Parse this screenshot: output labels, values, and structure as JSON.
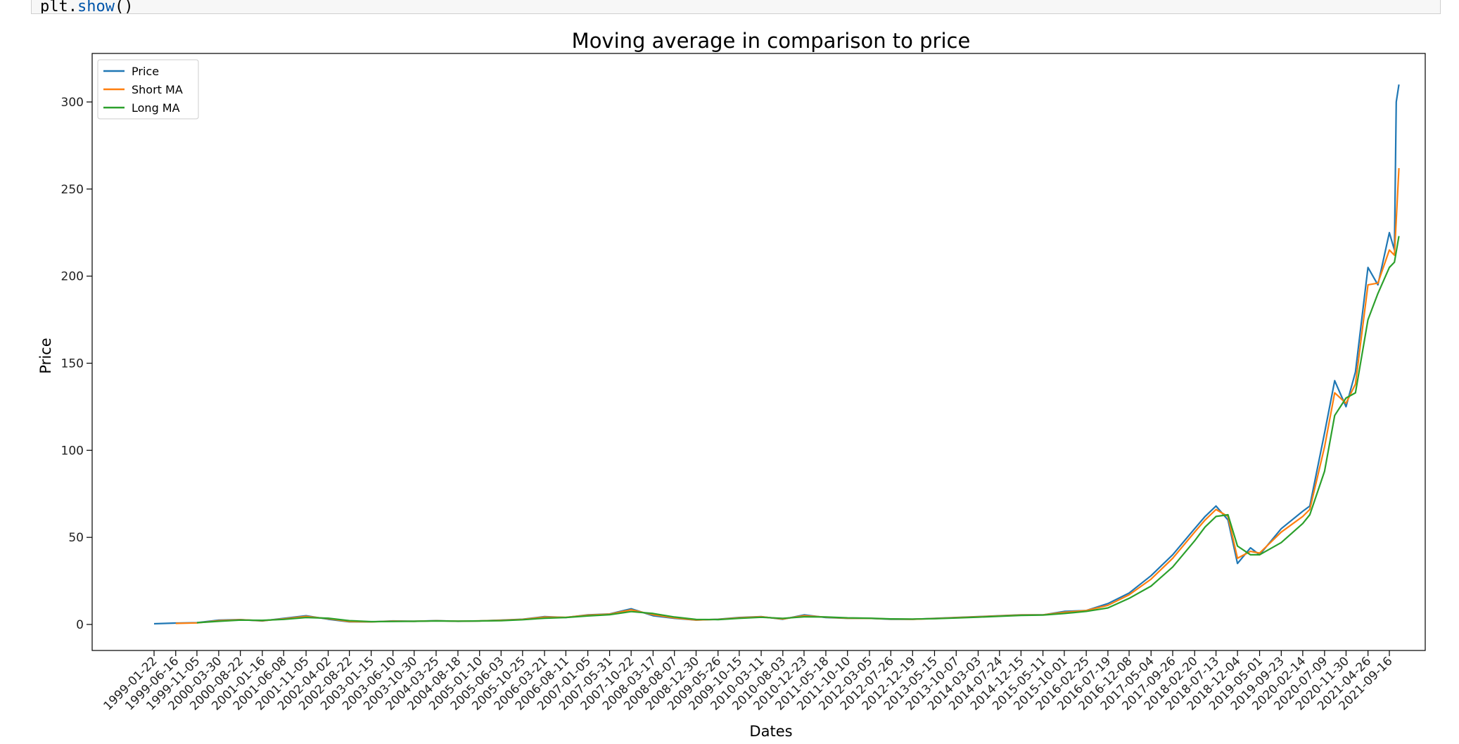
{
  "code_cell": {
    "visible_text_prefix": "plt.",
    "visible_text_fn": "show",
    "visible_text_suffix": "()"
  },
  "chart_data": {
    "type": "line",
    "title": "Moving average in comparison to price",
    "xlabel": "Dates",
    "ylabel": "Price",
    "ylim": [
      -15,
      326
    ],
    "yticks": [
      0,
      50,
      100,
      150,
      200,
      250,
      300
    ],
    "grid": false,
    "legend_position": "top-left",
    "x_tick_labels": [
      "1999-01-22",
      "1999-06-16",
      "1999-11-05",
      "2000-03-30",
      "2000-08-22",
      "2001-01-16",
      "2001-06-08",
      "2001-11-05",
      "2002-04-02",
      "2002-08-22",
      "2003-01-15",
      "2003-06-10",
      "2003-10-30",
      "2004-03-25",
      "2004-08-18",
      "2005-01-10",
      "2005-06-03",
      "2005-10-25",
      "2006-03-21",
      "2006-08-11",
      "2007-01-05",
      "2007-05-31",
      "2007-10-22",
      "2008-03-17",
      "2008-08-07",
      "2008-12-30",
      "2009-05-26",
      "2009-10-15",
      "2010-03-11",
      "2010-08-03",
      "2010-12-23",
      "2011-05-18",
      "2011-10-10",
      "2012-03-05",
      "2012-07-26",
      "2012-12-19",
      "2013-05-15",
      "2013-10-07",
      "2014-03-03",
      "2014-07-24",
      "2014-12-15",
      "2015-05-11",
      "2015-10-01",
      "2016-02-25",
      "2016-07-19",
      "2016-12-08",
      "2017-05-04",
      "2017-09-26",
      "2018-02-20",
      "2018-07-13",
      "2018-12-04",
      "2019-05-01",
      "2019-09-23",
      "2020-02-14",
      "2020-07-09",
      "2020-11-30",
      "2021-04-26",
      "2021-09-16"
    ],
    "series": [
      {
        "name": "Price",
        "color": "#1f77b4",
        "x": [
          "1999-01-22",
          "1999-06-16",
          "1999-11-05",
          "2000-03-30",
          "2000-08-22",
          "2001-01-16",
          "2001-06-08",
          "2001-11-05",
          "2002-04-02",
          "2002-08-22",
          "2003-01-15",
          "2003-06-10",
          "2003-10-30",
          "2004-03-25",
          "2004-08-18",
          "2005-01-10",
          "2005-06-03",
          "2005-10-25",
          "2006-03-21",
          "2006-08-11",
          "2007-01-05",
          "2007-05-31",
          "2007-10-22",
          "2008-03-17",
          "2008-08-07",
          "2008-12-30",
          "2009-05-26",
          "2009-10-15",
          "2010-03-11",
          "2010-08-03",
          "2010-12-23",
          "2011-05-18",
          "2011-10-10",
          "2012-03-05",
          "2012-07-26",
          "2012-12-19",
          "2013-05-15",
          "2013-10-07",
          "2014-03-03",
          "2014-07-24",
          "2014-12-15",
          "2015-05-11",
          "2015-10-01",
          "2016-02-25",
          "2016-07-19",
          "2016-12-08",
          "2017-05-04",
          "2017-09-26",
          "2018-02-20",
          "2018-05-01",
          "2018-07-13",
          "2018-10-01",
          "2018-12-04",
          "2019-03-01",
          "2019-05-01",
          "2019-09-23",
          "2020-02-14",
          "2020-04-01",
          "2020-07-09",
          "2020-09-15",
          "2020-11-30",
          "2021-02-01",
          "2021-04-26",
          "2021-07-01",
          "2021-09-16",
          "2021-10-20",
          "2021-11-01",
          "2021-11-19"
        ],
        "values": [
          0.4,
          0.8,
          1.0,
          2.5,
          2.8,
          2.0,
          3.5,
          5.0,
          3.0,
          1.5,
          1.5,
          2.0,
          1.8,
          2.2,
          1.8,
          2.0,
          2.5,
          3.0,
          4.5,
          4.0,
          5.5,
          6.0,
          9.0,
          5.0,
          3.5,
          2.5,
          3.0,
          4.0,
          4.5,
          3.0,
          5.5,
          4.0,
          3.5,
          3.5,
          3.0,
          3.0,
          3.5,
          4.0,
          4.5,
          5.0,
          5.5,
          5.5,
          7.5,
          8.0,
          12.0,
          18.0,
          28.0,
          40.0,
          55.0,
          62.0,
          68.0,
          60.0,
          35.0,
          44.0,
          40.0,
          55.0,
          65.0,
          68.0,
          110.0,
          140.0,
          125.0,
          145.0,
          205.0,
          195.0,
          225.0,
          215.0,
          300.0,
          310.0
        ]
      },
      {
        "name": "Short MA",
        "color": "#ff7f0e",
        "x": [
          "1999-06-16",
          "1999-11-05",
          "2000-03-30",
          "2000-08-22",
          "2001-01-16",
          "2001-06-08",
          "2001-11-05",
          "2002-04-02",
          "2002-08-22",
          "2003-01-15",
          "2003-06-10",
          "2003-10-30",
          "2004-03-25",
          "2004-08-18",
          "2005-01-10",
          "2005-06-03",
          "2005-10-25",
          "2006-03-21",
          "2006-08-11",
          "2007-01-05",
          "2007-05-31",
          "2007-10-22",
          "2008-03-17",
          "2008-08-07",
          "2008-12-30",
          "2009-05-26",
          "2009-10-15",
          "2010-03-11",
          "2010-08-03",
          "2010-12-23",
          "2011-05-18",
          "2011-10-10",
          "2012-03-05",
          "2012-07-26",
          "2012-12-19",
          "2013-05-15",
          "2013-10-07",
          "2014-03-03",
          "2014-07-24",
          "2014-12-15",
          "2015-05-11",
          "2015-10-01",
          "2016-02-25",
          "2016-07-19",
          "2016-12-08",
          "2017-05-04",
          "2017-09-26",
          "2018-02-20",
          "2018-05-01",
          "2018-07-13",
          "2018-10-01",
          "2018-12-04",
          "2019-03-01",
          "2019-05-01",
          "2019-09-23",
          "2020-02-14",
          "2020-04-01",
          "2020-07-09",
          "2020-09-15",
          "2020-11-30",
          "2021-02-01",
          "2021-04-26",
          "2021-07-01",
          "2021-09-16",
          "2021-10-20",
          "2021-11-19"
        ],
        "values": [
          0.6,
          0.9,
          2.2,
          2.7,
          2.2,
          3.2,
          4.6,
          3.3,
          1.7,
          1.5,
          1.9,
          1.8,
          2.1,
          1.9,
          2.0,
          2.4,
          2.9,
          4.2,
          4.1,
          5.3,
          5.9,
          8.4,
          5.6,
          3.8,
          2.6,
          2.9,
          3.8,
          4.4,
          3.2,
          5.0,
          4.2,
          3.6,
          3.5,
          3.1,
          3.0,
          3.4,
          3.9,
          4.4,
          4.9,
          5.4,
          5.5,
          7.0,
          8.0,
          11.0,
          17.0,
          26.0,
          38.0,
          53.0,
          60.0,
          66.0,
          62.0,
          38.0,
          42.0,
          41.0,
          53.0,
          62.0,
          66.0,
          102.0,
          133.0,
          127.0,
          138.0,
          195.0,
          196.0,
          215.0,
          212.0,
          262.0
        ]
      },
      {
        "name": "Long MA",
        "color": "#2ca02c",
        "x": [
          "1999-11-05",
          "2000-03-30",
          "2000-08-22",
          "2001-01-16",
          "2001-06-08",
          "2001-11-05",
          "2002-04-02",
          "2002-08-22",
          "2003-01-15",
          "2003-06-10",
          "2003-10-30",
          "2004-03-25",
          "2004-08-18",
          "2005-01-10",
          "2005-06-03",
          "2005-10-25",
          "2006-03-21",
          "2006-08-11",
          "2007-01-05",
          "2007-05-31",
          "2007-10-22",
          "2008-03-17",
          "2008-08-07",
          "2008-12-30",
          "2009-05-26",
          "2009-10-15",
          "2010-03-11",
          "2010-08-03",
          "2010-12-23",
          "2011-05-18",
          "2011-10-10",
          "2012-03-05",
          "2012-07-26",
          "2012-12-19",
          "2013-05-15",
          "2013-10-07",
          "2014-03-03",
          "2014-07-24",
          "2014-12-15",
          "2015-05-11",
          "2015-10-01",
          "2016-02-25",
          "2016-07-19",
          "2016-12-08",
          "2017-05-04",
          "2017-09-26",
          "2018-02-20",
          "2018-05-01",
          "2018-07-13",
          "2018-10-01",
          "2018-12-04",
          "2019-03-01",
          "2019-05-01",
          "2019-09-23",
          "2020-02-14",
          "2020-04-01",
          "2020-07-09",
          "2020-09-15",
          "2020-11-30",
          "2021-02-01",
          "2021-04-26",
          "2021-07-01",
          "2021-09-16",
          "2021-10-20",
          "2021-11-19"
        ],
        "values": [
          1.0,
          1.8,
          2.5,
          2.4,
          2.9,
          4.0,
          3.6,
          2.2,
          1.6,
          1.7,
          1.8,
          2.0,
          1.9,
          2.0,
          2.2,
          2.7,
          3.6,
          4.0,
          4.9,
          5.6,
          7.4,
          6.3,
          4.3,
          2.9,
          2.8,
          3.5,
          4.1,
          3.5,
          4.4,
          4.3,
          3.8,
          3.6,
          3.2,
          3.1,
          3.3,
          3.7,
          4.2,
          4.7,
          5.2,
          5.4,
          6.3,
          7.5,
          9.5,
          15.0,
          22.0,
          33.0,
          48.0,
          56.0,
          62.0,
          63.0,
          45.0,
          40.0,
          40.0,
          47.0,
          58.0,
          63.0,
          88.0,
          120.0,
          130.0,
          133.0,
          175.0,
          190.0,
          205.0,
          208.0,
          223.0
        ]
      }
    ]
  }
}
